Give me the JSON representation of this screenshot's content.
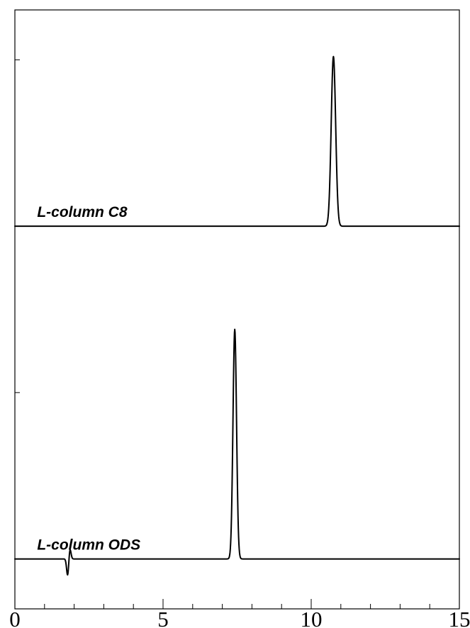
{
  "chart_data": {
    "type": "line",
    "xlim": [
      0,
      15
    ],
    "xticks": [
      {
        "value": 0,
        "label": "0"
      },
      {
        "value": 5,
        "label": "5"
      },
      {
        "value": 10,
        "label": "10"
      },
      {
        "value": 15,
        "label": "15"
      }
    ],
    "x_minor_step": 1,
    "y_minor_step": 1,
    "ylim": [
      -0.3,
      3.3
    ],
    "grid": false,
    "series": [
      {
        "name": "L-column C8",
        "baseline": 2.0,
        "peaks": [
          {
            "x": 10.75,
            "height": 1.02,
            "width": 0.075
          }
        ],
        "disturbances": []
      },
      {
        "name": "L-column ODS",
        "baseline": 0.0,
        "peaks": [
          {
            "x": 7.42,
            "height": 1.38,
            "width": 0.06
          }
        ],
        "disturbances": [
          {
            "x": 1.78,
            "height": -0.1,
            "width": 0.035
          },
          {
            "x": 1.86,
            "height": 0.06,
            "width": 0.035
          }
        ]
      }
    ]
  }
}
